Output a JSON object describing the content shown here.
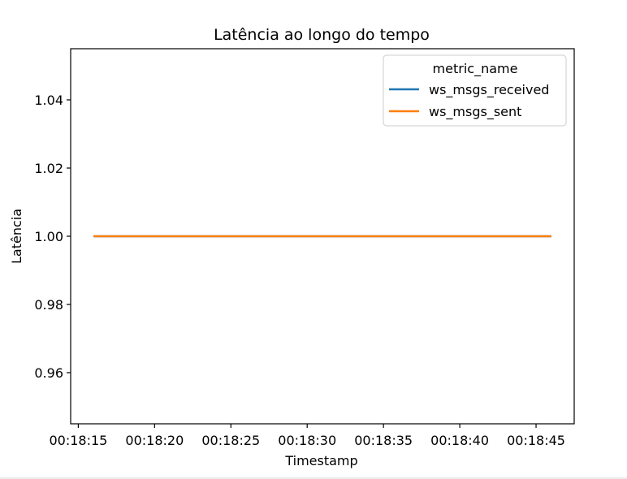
{
  "chart_data": {
    "type": "line",
    "title": "Latência ao longo do tempo",
    "xlabel": "Timestamp",
    "ylabel": "Latência",
    "x_type": "time",
    "xlim": [
      "00:18:14.500",
      "00:18:47.500"
    ],
    "x_ticks": [
      "00:18:15",
      "00:18:20",
      "00:18:25",
      "00:18:30",
      "00:18:35",
      "00:18:40",
      "00:18:45"
    ],
    "ylim": [
      0.945,
      1.055
    ],
    "y_ticks": [
      0.96,
      0.98,
      1.0,
      1.02,
      1.04
    ],
    "y_tick_labels": [
      "0.96",
      "0.98",
      "1.00",
      "1.02",
      "1.04"
    ],
    "grid": false,
    "legend": {
      "title": "metric_name",
      "placement": "top-right"
    },
    "series": [
      {
        "name": "ws_msgs_received",
        "color": "#1f77b4",
        "x": [
          "00:18:16",
          "00:18:46"
        ],
        "values": [
          1.0,
          1.0
        ]
      },
      {
        "name": "ws_msgs_sent",
        "color": "#ff7f0e",
        "x": [
          "00:18:16",
          "00:18:46"
        ],
        "values": [
          1.0,
          1.0
        ]
      }
    ]
  }
}
